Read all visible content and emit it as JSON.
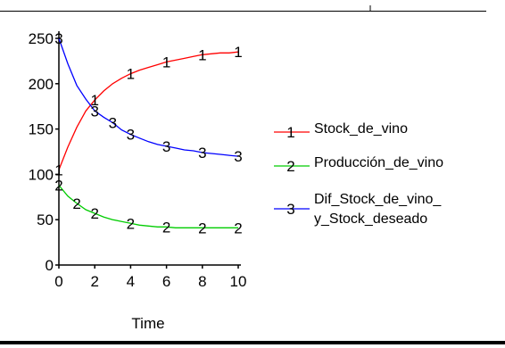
{
  "chart_data": {
    "type": "line",
    "xlabel": "Time",
    "ylabel": "",
    "xlim": [
      0,
      10
    ],
    "ylim": [
      0,
      250
    ],
    "xticks": [
      0,
      2,
      4,
      6,
      8,
      10
    ],
    "yticks": [
      0,
      50,
      100,
      150,
      200,
      250
    ],
    "x": [
      0,
      0.5,
      1,
      1.5,
      2,
      2.5,
      3,
      3.5,
      4,
      4.5,
      5,
      5.5,
      6,
      6.5,
      7,
      7.5,
      8,
      8.5,
      9,
      9.5,
      10
    ],
    "series": [
      {
        "name": "Stock_de_vino",
        "marker": "1",
        "color": "#ff0000",
        "values": [
          105,
          130,
          152,
          170,
          182,
          192,
          200,
          206,
          211,
          215,
          218,
          221,
          224,
          226,
          228,
          230,
          232,
          233,
          234,
          234,
          235
        ]
      },
      {
        "name": "Producción_de_vino",
        "marker": "2",
        "color": "#00cc00",
        "values": [
          88,
          76,
          68,
          61,
          57,
          53,
          50,
          48,
          46,
          44,
          43,
          42,
          42,
          41,
          41,
          41,
          41,
          41,
          41,
          41,
          41
        ]
      },
      {
        "name": "Dif_Stock_de_vino_ y_Stock_deseado",
        "marker": "3",
        "color": "#0000ff",
        "values": [
          250,
          222,
          198,
          183,
          170,
          163,
          157,
          149,
          144,
          140,
          136,
          133,
          131,
          129,
          127,
          126,
          124,
          123,
          122,
          121,
          120
        ]
      }
    ],
    "marker_positions": [
      [
        0,
        2,
        4,
        6,
        8,
        10
      ],
      [
        0,
        1,
        2,
        4,
        6,
        8,
        10
      ],
      [
        0,
        2,
        3,
        4,
        6,
        8,
        10
      ]
    ],
    "legend": {
      "placement": "right",
      "entries": [
        {
          "lines": [
            "Stock_de_vino"
          ],
          "marker": "1",
          "color": "#ff0000"
        },
        {
          "lines": [
            "Producción_de_vino"
          ],
          "marker": "2",
          "color": "#00cc00"
        },
        {
          "lines": [
            "Dif_Stock_de_vino_",
            "y_Stock_deseado"
          ],
          "marker": "3",
          "color": "#0000ff"
        }
      ]
    },
    "grid": false
  }
}
